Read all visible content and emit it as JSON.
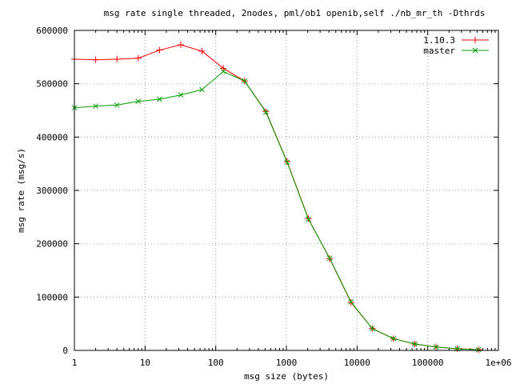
{
  "chart_data": {
    "type": "line",
    "title": "msg rate single threaded, 2nodes, pml/ob1 openib,self ./nb_mr_th -Dthrds",
    "xlabel": "msg size (bytes)",
    "ylabel": "msg rate (msg/s)",
    "x_scale": "log",
    "xlim": [
      1,
      1000000
    ],
    "ylim": [
      0,
      600000
    ],
    "grid": true,
    "legend_position": "top-right",
    "x_ticks": [
      {
        "value": 1,
        "label": "1"
      },
      {
        "value": 10,
        "label": "10"
      },
      {
        "value": 100,
        "label": "100"
      },
      {
        "value": 1000,
        "label": "1000"
      },
      {
        "value": 10000,
        "label": "10000"
      },
      {
        "value": 100000,
        "label": "100000"
      },
      {
        "value": 1000000,
        "label": "1e+06"
      }
    ],
    "y_ticks": [
      {
        "value": 0,
        "label": "0"
      },
      {
        "value": 100000,
        "label": "100000"
      },
      {
        "value": 200000,
        "label": "200000"
      },
      {
        "value": 300000,
        "label": "300000"
      },
      {
        "value": 400000,
        "label": "400000"
      },
      {
        "value": 500000,
        "label": "500000"
      },
      {
        "value": 600000,
        "label": "600000"
      }
    ],
    "x": [
      1,
      2,
      4,
      8,
      16,
      32,
      64,
      128,
      256,
      512,
      1024,
      2048,
      4096,
      8192,
      16384,
      32768,
      65536,
      131072,
      262144,
      524288
    ],
    "series": [
      {
        "name": "1.10.3",
        "color": "#ff0000",
        "marker": "plus",
        "values": [
          546000,
          545000,
          546000,
          548000,
          563000,
          573000,
          561000,
          529000,
          505000,
          448000,
          354000,
          247000,
          172000,
          90000,
          41000,
          22000,
          12000,
          6500,
          3200,
          1300
        ]
      },
      {
        "name": "master",
        "color": "#00a000",
        "marker": "cross",
        "values": [
          455000,
          458000,
          460000,
          467000,
          471000,
          479000,
          489000,
          523000,
          505000,
          447000,
          353000,
          246000,
          173000,
          91000,
          41000,
          22000,
          12000,
          6300,
          3000,
          1200
        ]
      }
    ]
  }
}
